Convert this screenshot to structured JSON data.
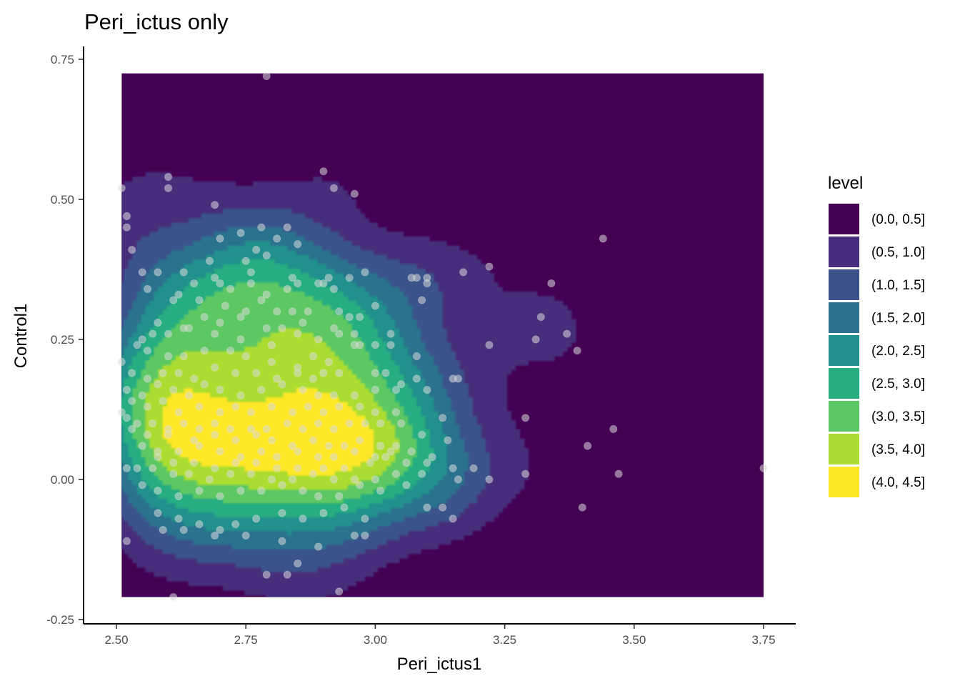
{
  "chart_data": {
    "type": "density_2d_filled",
    "title": "Peri_ictus only",
    "xlabel": "Peri_ictus1",
    "ylabel": "Control1",
    "xlim": [
      2.44,
      3.8
    ],
    "ylim": [
      -0.265,
      0.775
    ],
    "density_extent": {
      "x": [
        2.51,
        3.75
      ],
      "y": [
        -0.21,
        0.725
      ]
    },
    "x_ticks": [
      2.5,
      2.75,
      3.0,
      3.25,
      3.5,
      3.75
    ],
    "x_tick_labels": [
      "2.50",
      "2.75",
      "3.00",
      "3.25",
      "3.50",
      "3.75"
    ],
    "y_ticks": [
      -0.25,
      0.0,
      0.25,
      0.5,
      0.75
    ],
    "y_tick_labels": [
      "-0.25",
      "0.00",
      "0.25",
      "0.50",
      "0.75"
    ],
    "grid": false,
    "legend": {
      "title": "level",
      "position": "right",
      "entries": [
        {
          "label": "(0.0, 0.5]",
          "color": "#440154"
        },
        {
          "label": "(0.5, 1.0]",
          "color": "#472D7B"
        },
        {
          "label": "(1.0, 1.5]",
          "color": "#3B528B"
        },
        {
          "label": "(1.5, 2.0]",
          "color": "#2C728E"
        },
        {
          "label": "(2.0, 2.5]",
          "color": "#21908C"
        },
        {
          "label": "(2.5, 3.0]",
          "color": "#27AD81"
        },
        {
          "label": "(3.0, 3.5]",
          "color": "#5DC863"
        },
        {
          "label": "(3.5, 4.0]",
          "color": "#AADC32"
        },
        {
          "label": "(4.0, 4.5]",
          "color": "#FDE725"
        }
      ]
    },
    "point_style": {
      "color": "#d9d9d9",
      "opacity": 0.55
    },
    "points": [
      [
        2.79,
        0.72
      ],
      [
        2.9,
        0.55
      ],
      [
        2.92,
        0.52
      ],
      [
        2.96,
        0.51
      ],
      [
        2.6,
        0.54
      ],
      [
        2.6,
        0.52
      ],
      [
        2.51,
        0.52
      ],
      [
        2.69,
        0.49
      ],
      [
        2.52,
        0.47
      ],
      [
        2.52,
        0.45
      ],
      [
        2.53,
        0.41
      ],
      [
        2.78,
        0.45
      ],
      [
        2.83,
        0.45
      ],
      [
        2.74,
        0.44
      ],
      [
        2.81,
        0.43
      ],
      [
        2.7,
        0.43
      ],
      [
        2.85,
        0.42
      ],
      [
        2.77,
        0.41
      ],
      [
        2.79,
        0.4
      ],
      [
        2.75,
        0.39
      ],
      [
        2.68,
        0.39
      ],
      [
        2.55,
        0.37
      ],
      [
        2.58,
        0.37
      ],
      [
        2.63,
        0.37
      ],
      [
        2.69,
        0.36
      ],
      [
        2.76,
        0.37
      ],
      [
        2.84,
        0.36
      ],
      [
        2.91,
        0.36
      ],
      [
        2.95,
        0.36
      ],
      [
        2.98,
        0.37
      ],
      [
        3.07,
        0.36
      ],
      [
        3.08,
        0.36
      ],
      [
        3.1,
        0.36
      ],
      [
        3.1,
        0.35
      ],
      [
        3.17,
        0.37
      ],
      [
        3.22,
        0.38
      ],
      [
        2.56,
        0.34
      ],
      [
        2.62,
        0.33
      ],
      [
        2.65,
        0.35
      ],
      [
        2.7,
        0.35
      ],
      [
        2.72,
        0.34
      ],
      [
        2.76,
        0.35
      ],
      [
        2.79,
        0.33
      ],
      [
        2.83,
        0.34
      ],
      [
        2.85,
        0.35
      ],
      [
        2.9,
        0.35
      ],
      [
        2.92,
        0.34
      ],
      [
        2.89,
        0.35
      ],
      [
        2.61,
        0.32
      ],
      [
        2.66,
        0.32
      ],
      [
        2.71,
        0.31
      ],
      [
        2.75,
        0.3
      ],
      [
        2.78,
        0.32
      ],
      [
        2.81,
        0.3
      ],
      [
        2.84,
        0.3
      ],
      [
        2.87,
        0.3
      ],
      [
        2.93,
        0.3
      ],
      [
        2.95,
        0.29
      ],
      [
        3.0,
        0.31
      ],
      [
        3.09,
        0.32
      ],
      [
        2.58,
        0.28
      ],
      [
        2.63,
        0.27
      ],
      [
        2.67,
        0.29
      ],
      [
        2.7,
        0.28
      ],
      [
        2.74,
        0.29
      ],
      [
        2.79,
        0.27
      ],
      [
        2.82,
        0.27
      ],
      [
        2.86,
        0.28
      ],
      [
        2.92,
        0.27
      ],
      [
        2.96,
        0.26
      ],
      [
        2.97,
        0.29
      ],
      [
        2.55,
        0.25
      ],
      [
        2.57,
        0.26
      ],
      [
        2.6,
        0.26
      ],
      [
        2.64,
        0.27
      ],
      [
        2.69,
        0.26
      ],
      [
        2.74,
        0.25
      ],
      [
        2.8,
        0.24
      ],
      [
        2.85,
        0.26
      ],
      [
        2.89,
        0.25
      ],
      [
        2.93,
        0.26
      ],
      [
        2.96,
        0.24
      ],
      [
        3.03,
        0.24
      ],
      [
        3.03,
        0.26
      ],
      [
        2.54,
        0.24
      ],
      [
        2.56,
        0.23
      ],
      [
        2.6,
        0.22
      ],
      [
        2.63,
        0.22
      ],
      [
        2.67,
        0.23
      ],
      [
        2.72,
        0.23
      ],
      [
        2.75,
        0.22
      ],
      [
        2.8,
        0.21
      ],
      [
        2.85,
        0.2
      ],
      [
        2.88,
        0.22
      ],
      [
        2.91,
        0.21
      ],
      [
        2.97,
        0.24
      ],
      [
        3.0,
        0.24
      ],
      [
        3.08,
        0.22
      ],
      [
        3.15,
        0.18
      ],
      [
        3.22,
        0.24
      ],
      [
        2.51,
        0.21
      ],
      [
        2.53,
        0.19
      ],
      [
        2.56,
        0.18
      ],
      [
        2.59,
        0.19
      ],
      [
        2.62,
        0.19
      ],
      [
        2.65,
        0.18
      ],
      [
        2.69,
        0.2
      ],
      [
        2.73,
        0.19
      ],
      [
        2.77,
        0.19
      ],
      [
        2.81,
        0.18
      ],
      [
        2.85,
        0.19
      ],
      [
        2.88,
        0.18
      ],
      [
        2.9,
        0.19
      ],
      [
        2.93,
        0.19
      ],
      [
        3.0,
        0.19
      ],
      [
        3.02,
        0.19
      ],
      [
        3.05,
        0.17
      ],
      [
        3.08,
        0.18
      ],
      [
        2.52,
        0.16
      ],
      [
        2.55,
        0.15
      ],
      [
        2.58,
        0.17
      ],
      [
        2.61,
        0.16
      ],
      [
        2.64,
        0.15
      ],
      [
        2.67,
        0.17
      ],
      [
        2.7,
        0.16
      ],
      [
        2.74,
        0.15
      ],
      [
        2.78,
        0.16
      ],
      [
        2.82,
        0.17
      ],
      [
        2.86,
        0.16
      ],
      [
        2.89,
        0.15
      ],
      [
        2.92,
        0.15
      ],
      [
        2.96,
        0.15
      ],
      [
        3.0,
        0.16
      ],
      [
        3.04,
        0.16
      ],
      [
        3.1,
        0.16
      ],
      [
        2.51,
        0.12
      ],
      [
        2.53,
        0.14
      ],
      [
        2.56,
        0.13
      ],
      [
        2.59,
        0.14
      ],
      [
        2.62,
        0.12
      ],
      [
        2.66,
        0.13
      ],
      [
        2.7,
        0.12
      ],
      [
        2.73,
        0.13
      ],
      [
        2.76,
        0.12
      ],
      [
        2.8,
        0.13
      ],
      [
        2.84,
        0.12
      ],
      [
        2.87,
        0.13
      ],
      [
        2.9,
        0.12
      ],
      [
        2.93,
        0.13
      ],
      [
        2.97,
        0.13
      ],
      [
        3.0,
        0.12
      ],
      [
        3.04,
        0.12
      ],
      [
        2.52,
        0.11
      ],
      [
        2.54,
        0.1
      ],
      [
        2.57,
        0.1
      ],
      [
        2.6,
        0.09
      ],
      [
        2.63,
        0.1
      ],
      [
        2.66,
        0.09
      ],
      [
        2.69,
        0.1
      ],
      [
        2.72,
        0.09
      ],
      [
        2.76,
        0.09
      ],
      [
        2.79,
        0.09
      ],
      [
        2.83,
        0.1
      ],
      [
        2.86,
        0.09
      ],
      [
        2.89,
        0.1
      ],
      [
        2.92,
        0.09
      ],
      [
        2.95,
        0.1
      ],
      [
        2.98,
        0.1
      ],
      [
        3.01,
        0.1
      ],
      [
        3.05,
        0.1
      ],
      [
        3.13,
        0.11
      ],
      [
        2.53,
        0.09
      ],
      [
        2.56,
        0.08
      ],
      [
        2.6,
        0.08
      ],
      [
        2.65,
        0.07
      ],
      [
        2.69,
        0.08
      ],
      [
        2.73,
        0.07
      ],
      [
        2.77,
        0.08
      ],
      [
        2.8,
        0.07
      ],
      [
        2.84,
        0.06
      ],
      [
        2.88,
        0.07
      ],
      [
        2.91,
        0.06
      ],
      [
        2.94,
        0.06
      ],
      [
        2.97,
        0.07
      ],
      [
        3.01,
        0.06
      ],
      [
        3.04,
        0.06
      ],
      [
        3.09,
        0.08
      ],
      [
        3.14,
        0.07
      ],
      [
        2.55,
        0.06
      ],
      [
        2.58,
        0.05
      ],
      [
        2.62,
        0.05
      ],
      [
        2.66,
        0.06
      ],
      [
        2.7,
        0.05
      ],
      [
        2.74,
        0.04
      ],
      [
        2.78,
        0.05
      ],
      [
        2.81,
        0.04
      ],
      [
        2.85,
        0.05
      ],
      [
        2.89,
        0.04
      ],
      [
        2.92,
        0.04
      ],
      [
        2.96,
        0.05
      ],
      [
        3.0,
        0.04
      ],
      [
        3.03,
        0.05
      ],
      [
        3.07,
        0.05
      ],
      [
        3.11,
        0.04
      ],
      [
        2.58,
        0.04
      ],
      [
        2.61,
        0.03
      ],
      [
        2.65,
        0.03
      ],
      [
        2.69,
        0.02
      ],
      [
        2.73,
        0.03
      ],
      [
        2.77,
        0.03
      ],
      [
        2.81,
        0.02
      ],
      [
        2.85,
        0.02
      ],
      [
        2.9,
        0.02
      ],
      [
        2.94,
        0.02
      ],
      [
        2.99,
        0.03
      ],
      [
        3.02,
        0.04
      ],
      [
        3.06,
        0.03
      ],
      [
        3.1,
        0.03
      ],
      [
        3.15,
        0.02
      ],
      [
        3.19,
        0.02
      ],
      [
        2.52,
        0.02
      ],
      [
        2.54,
        0.02
      ],
      [
        2.57,
        0.02
      ],
      [
        2.61,
        0.01
      ],
      [
        2.64,
        0.01
      ],
      [
        2.68,
        0.0
      ],
      [
        2.72,
        0.01
      ],
      [
        2.76,
        0.01
      ],
      [
        2.8,
        0.0
      ],
      [
        2.84,
        0.0
      ],
      [
        2.88,
        0.01
      ],
      [
        2.92,
        0.0
      ],
      [
        2.96,
        0.0
      ],
      [
        3.0,
        0.0
      ],
      [
        3.04,
        0.01
      ],
      [
        3.09,
        0.01
      ],
      [
        3.16,
        0.0
      ],
      [
        3.22,
        0.0
      ],
      [
        3.29,
        0.01
      ],
      [
        3.47,
        0.01
      ],
      [
        3.75,
        0.02
      ],
      [
        2.55,
        -0.01
      ],
      [
        2.58,
        -0.02
      ],
      [
        2.62,
        -0.03
      ],
      [
        2.66,
        -0.02
      ],
      [
        2.7,
        -0.03
      ],
      [
        2.74,
        -0.02
      ],
      [
        2.78,
        -0.02
      ],
      [
        2.82,
        -0.01
      ],
      [
        2.86,
        -0.02
      ],
      [
        2.89,
        -0.03
      ],
      [
        2.93,
        -0.03
      ],
      [
        2.97,
        -0.01
      ],
      [
        3.01,
        -0.02
      ],
      [
        3.06,
        -0.01
      ],
      [
        3.1,
        -0.05
      ],
      [
        3.13,
        -0.05
      ],
      [
        2.58,
        -0.06
      ],
      [
        2.62,
        -0.07
      ],
      [
        2.66,
        -0.08
      ],
      [
        2.7,
        -0.09
      ],
      [
        2.73,
        -0.08
      ],
      [
        2.77,
        -0.07
      ],
      [
        2.82,
        -0.06
      ],
      [
        2.86,
        -0.07
      ],
      [
        2.9,
        -0.06
      ],
      [
        2.94,
        -0.05
      ],
      [
        2.98,
        -0.07
      ],
      [
        3.15,
        -0.07
      ],
      [
        3.4,
        -0.05
      ],
      [
        2.59,
        -0.09
      ],
      [
        2.63,
        -0.09
      ],
      [
        2.69,
        -0.1
      ],
      [
        2.75,
        -0.1
      ],
      [
        2.82,
        -0.11
      ],
      [
        2.89,
        -0.12
      ],
      [
        2.96,
        -0.1
      ],
      [
        2.98,
        -0.1
      ],
      [
        2.52,
        -0.11
      ],
      [
        2.83,
        -0.17
      ],
      [
        2.79,
        -0.17
      ],
      [
        2.85,
        -0.15
      ],
      [
        2.93,
        -0.2
      ],
      [
        2.61,
        -0.21
      ],
      [
        3.29,
        0.11
      ],
      [
        3.32,
        0.29
      ],
      [
        3.34,
        0.35
      ],
      [
        3.37,
        0.26
      ],
      [
        3.39,
        0.23
      ],
      [
        3.31,
        0.25
      ],
      [
        3.44,
        0.43
      ],
      [
        3.46,
        0.09
      ],
      [
        3.41,
        0.06
      ],
      [
        3.16,
        0.18
      ]
    ]
  }
}
